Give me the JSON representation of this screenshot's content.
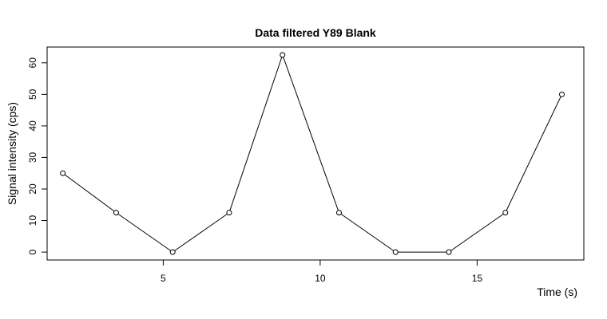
{
  "chart_data": {
    "type": "line",
    "title": "Data filtered Y89 Blank",
    "xlabel": "Time (s)",
    "ylabel": "Signal intensity (cps)",
    "xlim": [
      1.3,
      18.4
    ],
    "ylim": [
      -2.5,
      65
    ],
    "x_ticks": [
      5,
      10,
      15
    ],
    "y_ticks": [
      0,
      10,
      20,
      30,
      40,
      50,
      60
    ],
    "grid": false,
    "legend": "none",
    "marker": "open-circle",
    "series": [
      {
        "x": [
          1.8,
          3.5,
          5.3,
          7.1,
          8.8,
          10.6,
          12.4,
          14.1,
          15.9,
          17.7
        ],
        "y": [
          25,
          12.5,
          0,
          12.5,
          62.5,
          12.5,
          0,
          0,
          12.5,
          50
        ]
      }
    ]
  }
}
